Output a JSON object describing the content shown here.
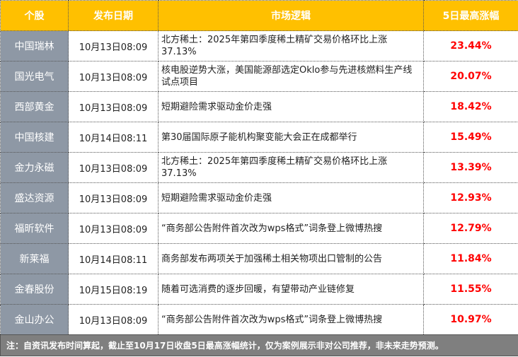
{
  "header": {
    "stock": "个股",
    "date": "发布日期",
    "logic": "市场逻辑",
    "gain": "5日最高涨幅"
  },
  "rows": [
    {
      "stock": "中国瑞林",
      "date": "10月13日08:09",
      "logic": "北方稀土：2025年第四季度稀土精矿交易价格环比上涨37.13%",
      "gain": "23.44%"
    },
    {
      "stock": "国光电气",
      "date": "10月13日08:09",
      "logic": "核电股逆势大涨，美国能源部选定Oklo参与先进核燃料生产线试点项目",
      "gain": "20.07%"
    },
    {
      "stock": "西部黄金",
      "date": "10月13日08:09",
      "logic": "短期避险需求驱动金价走强",
      "gain": "18.42%"
    },
    {
      "stock": "中国核建",
      "date": "10月14日08:11",
      "logic": "第30届国际原子能机构聚变能大会正在成都举行",
      "gain": "15.49%"
    },
    {
      "stock": "金力永磁",
      "date": "10月13日08:09",
      "logic": "北方稀土：2025年第四季度稀土精矿交易价格环比上涨37.13%",
      "gain": "13.39%"
    },
    {
      "stock": "盛达资源",
      "date": "10月13日08:09",
      "logic": "短期避险需求驱动金价走强",
      "gain": "12.93%"
    },
    {
      "stock": "福昕软件",
      "date": "10月13日08:09",
      "logic": "“商务部公告附件首次改为wps格式”词条登上微博热搜",
      "gain": "12.79%"
    },
    {
      "stock": "新莱福",
      "date": "10月14日08:11",
      "logic": "商务部发布两项关于加强稀土相关物项出口管制的公告",
      "gain": "11.84%"
    },
    {
      "stock": "金春股份",
      "date": "10月15日08:19",
      "logic": "随着可选消费的逐步回暖，有望带动产业链修复",
      "gain": "11.55%"
    },
    {
      "stock": "金山办公",
      "date": "10月13日08:09",
      "logic": "“商务部公告附件首次改为wps格式”词条登上微博热搜",
      "gain": "10.97%"
    }
  ],
  "footer": "注：自资讯发布时间算起，截止至10月17日收盘5日最高涨幅统计，仅为案例展示非对公司推荐，非未来走势预测。",
  "colors": {
    "header": "#ffc000",
    "stock_col": "#8e98a5",
    "gain": "#ff0000",
    "footer": "#7f7f7f"
  }
}
